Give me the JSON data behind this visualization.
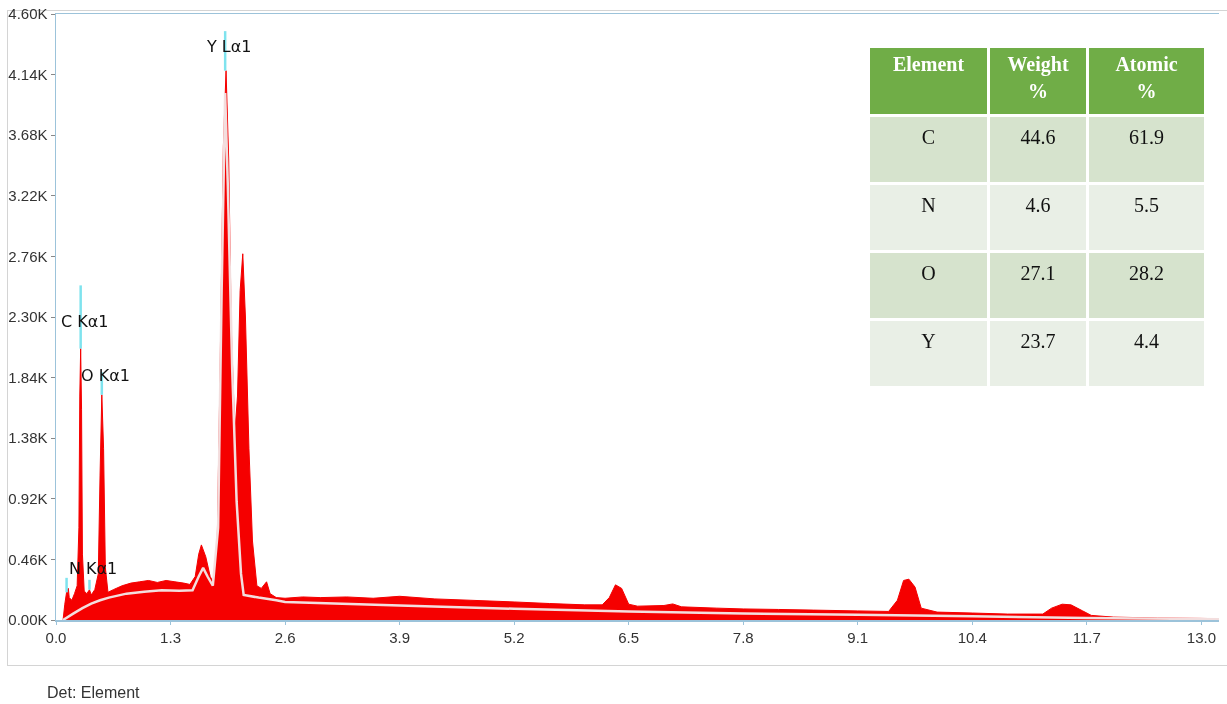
{
  "chart_data": [
    {
      "type": "area",
      "xlim": [
        0,
        13.2
      ],
      "ylim": [
        0,
        4600
      ],
      "xticks": [
        {
          "value": 0,
          "label": "0.0"
        },
        1.3,
        2.6,
        3.9,
        5.2,
        6.5,
        7.8,
        9.1,
        10.4,
        11.7,
        {
          "value": 13,
          "label": "13.0"
        }
      ],
      "yticks": [
        {
          "value": 0,
          "label": "0.00K"
        },
        {
          "value": 460,
          "label": "0.46K"
        },
        {
          "value": 920,
          "label": "0.92K"
        },
        {
          "value": 1380,
          "label": "1.38K"
        },
        {
          "value": 1840,
          "label": "1.84K"
        },
        {
          "value": 2300,
          "label": "2.30K"
        },
        {
          "value": 2760,
          "label": "2.76K"
        },
        {
          "value": 3220,
          "label": "3.22K"
        },
        {
          "value": 3680,
          "label": "3.68K"
        },
        {
          "value": 4140,
          "label": "4.14K"
        },
        {
          "value": 4600,
          "label": "4.60K"
        }
      ],
      "series": [
        {
          "type": "area",
          "color": "#f50000",
          "x": [
            0.08,
            0.1,
            0.12,
            0.14,
            0.15,
            0.18,
            0.21,
            0.24,
            0.26,
            0.27,
            0.28,
            0.29,
            0.3,
            0.32,
            0.35,
            0.38,
            0.4,
            0.44,
            0.48,
            0.5,
            0.52,
            0.54,
            0.56,
            0.59,
            0.65,
            0.75,
            0.85,
            0.95,
            1.05,
            1.15,
            1.25,
            1.35,
            1.45,
            1.52,
            1.58,
            1.62,
            1.65,
            1.7,
            1.75,
            1.79,
            1.83,
            1.86,
            1.9,
            1.93,
            1.96,
            1.99,
            2.03,
            2.06,
            2.09,
            2.12,
            2.15,
            2.19,
            2.23,
            2.28,
            2.33,
            2.39,
            2.43,
            2.5,
            2.6,
            2.8,
            3.0,
            3.3,
            3.6,
            3.9,
            4.3,
            4.7,
            5.2,
            5.6,
            6.0,
            6.2,
            6.28,
            6.35,
            6.42,
            6.5,
            6.6,
            6.9,
            7.0,
            7.1,
            7.5,
            7.8,
            8.2,
            8.6,
            9.1,
            9.45,
            9.55,
            9.62,
            9.68,
            9.75,
            9.82,
            10.0,
            10.4,
            10.8,
            11.2,
            11.3,
            11.42,
            11.52,
            11.65,
            11.75,
            12.0,
            12.5,
            13.0,
            13.2
          ],
          "values": [
            0,
            120,
            210,
            240,
            170,
            150,
            200,
            260,
            700,
            1700,
            2060,
            1600,
            500,
            220,
            200,
            230,
            190,
            230,
            350,
            1100,
            1710,
            1300,
            400,
            210,
            230,
            260,
            280,
            290,
            300,
            285,
            300,
            290,
            280,
            270,
            330,
            500,
            570,
            480,
            330,
            280,
            600,
            1800,
            3600,
            4170,
            3500,
            2200,
            1420,
            1700,
            2500,
            2780,
            2300,
            1300,
            600,
            260,
            240,
            290,
            200,
            170,
            165,
            175,
            170,
            175,
            165,
            180,
            160,
            150,
            137,
            125,
            115,
            115,
            170,
            267,
            240,
            120,
            105,
            110,
            122,
            100,
            90,
            84,
            80,
            75,
            69,
            65,
            150,
            300,
            310,
            250,
            90,
            60,
            53,
            45,
            45,
            90,
            120,
            115,
            70,
            35,
            22,
            15,
            12,
            10
          ]
        },
        {
          "type": "line",
          "color": "#f3dede",
          "x": [
            0.08,
            0.2,
            0.3,
            0.4,
            0.5,
            0.6,
            0.8,
            1.0,
            1.2,
            1.4,
            1.55,
            1.62,
            1.67,
            1.72,
            1.78,
            1.84,
            1.88,
            1.92,
            1.95,
            2.0,
            2.05,
            2.1,
            2.13,
            2.3,
            2.5,
            2.6,
            3.9,
            5.2,
            6.5,
            7.8,
            9.1,
            10.4,
            11.7,
            13.2
          ],
          "values": [
            0,
            50,
            90,
            125,
            150,
            170,
            200,
            215,
            225,
            222,
            225,
            330,
            396,
            330,
            260,
            700,
            2500,
            4000,
            3300,
            1900,
            900,
            350,
            190,
            170,
            150,
            137,
            110,
            85,
            65,
            50,
            40,
            28,
            16,
            6
          ]
        },
        {
          "type": "line",
          "color": "#7fe3ee",
          "x": [
            0.12,
            0.12
          ],
          "values": [
            210,
            320
          ]
        },
        {
          "type": "line",
          "color": "#7fe3ee",
          "x": [
            0.28,
            0.28
          ],
          "values": [
            2060,
            2540
          ]
        },
        {
          "type": "line",
          "color": "#7fe3ee",
          "x": [
            0.38,
            0.38
          ],
          "values": [
            230,
            305
          ]
        },
        {
          "type": "line",
          "color": "#7fe3ee",
          "x": [
            0.52,
            0.52
          ],
          "values": [
            1710,
            1880
          ]
        },
        {
          "type": "line",
          "color": "#7fe3ee",
          "x": [
            1.92,
            1.92
          ],
          "values": [
            4170,
            4470
          ]
        }
      ],
      "annotations": [
        {
          "text": "Y Lα1",
          "x": 1.92,
          "y": 4265
        },
        {
          "text": "C Kα1",
          "x": 0.28,
          "y": 2180
        },
        {
          "text": "O Kα1",
          "x": 0.52,
          "y": 1770
        },
        {
          "text": "N Kα1",
          "x": 0.38,
          "y": 305
        },
        "Det: Element"
      ]
    },
    {
      "type": "other",
      "xlabel": "Element",
      "categories": [
        "C",
        "N",
        "O",
        "Y"
      ],
      "series": [
        {
          "name": "Weight %",
          "colors": [
            "#d6e3cd",
            "#e9efe6",
            "#d6e3cd",
            "#e9efe6"
          ],
          "values": [
            44.6,
            4.6,
            27.1,
            23.7
          ]
        },
        {
          "name": "Atomic %",
          "colors": [
            "#d6e3cd",
            "#e9efe6",
            "#d6e3cd",
            "#e9efe6"
          ],
          "values": [
            61.9,
            5.5,
            28.2,
            4.4
          ]
        }
      ],
      "data_labels": true
    }
  ]
}
